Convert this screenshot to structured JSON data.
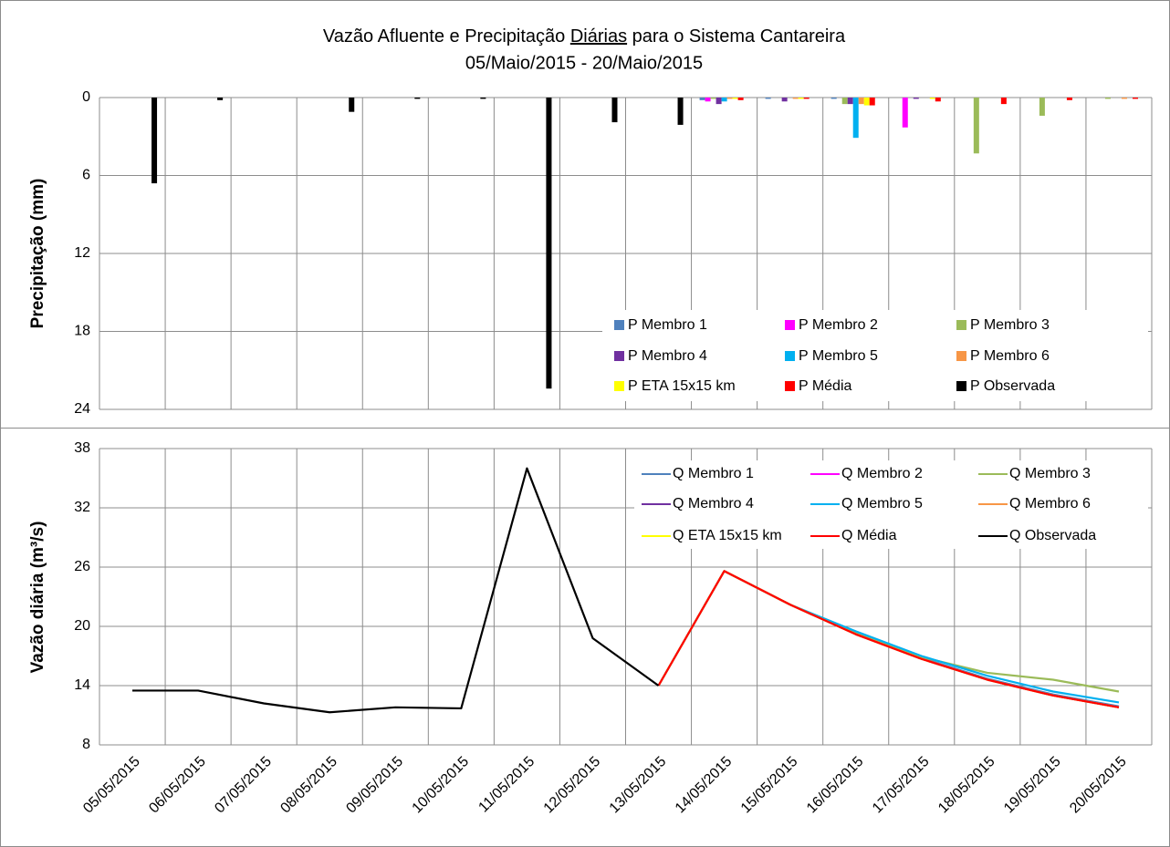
{
  "chart_data": [
    {
      "type": "bar",
      "title": [
        "Vazão Afluente e Precipitação ",
        "Diárias",
        " para o Sistema Cantareira"
      ],
      "subtitle": "05/Maio/2015 - 20/Maio/2015",
      "y_label": "Precipitação (mm)",
      "categories": [
        "05/05/2015",
        "06/05/2015",
        "07/05/2015",
        "08/05/2015",
        "09/05/2015",
        "10/05/2015",
        "11/05/2015",
        "12/05/2015",
        "13/05/2015",
        "14/05/2015",
        "15/05/2015",
        "16/05/2015",
        "17/05/2015",
        "18/05/2015",
        "19/05/2015",
        "20/05/2015"
      ],
      "ylim": [
        0,
        24
      ],
      "yticks": [
        0,
        6,
        12,
        18,
        24
      ],
      "y_reversed": true,
      "grid": true,
      "legend": "lower right",
      "series": [
        {
          "name": "P Membro 1",
          "color": "#4f81bd",
          "values": [
            null,
            null,
            null,
            null,
            null,
            null,
            null,
            null,
            null,
            0.2,
            0.1,
            0.1,
            0.0,
            0.0,
            0.0,
            0.0
          ]
        },
        {
          "name": "P Membro 2",
          "color": "#ff00ff",
          "values": [
            null,
            null,
            null,
            null,
            null,
            null,
            null,
            null,
            null,
            0.3,
            0.0,
            0.0,
            2.3,
            0.0,
            0.0,
            0.0
          ]
        },
        {
          "name": "P Membro 3",
          "color": "#9bbb59",
          "values": [
            null,
            null,
            null,
            null,
            null,
            null,
            null,
            null,
            null,
            0.1,
            0.0,
            0.5,
            0.0,
            4.3,
            1.4,
            0.1
          ]
        },
        {
          "name": "P Membro 4",
          "color": "#7030a0",
          "values": [
            null,
            null,
            null,
            null,
            null,
            null,
            null,
            null,
            null,
            0.5,
            0.3,
            0.5,
            0.1,
            0.0,
            0.0,
            0.0
          ]
        },
        {
          "name": "P Membro 5",
          "color": "#00b0f0",
          "values": [
            null,
            null,
            null,
            null,
            null,
            null,
            null,
            null,
            null,
            0.3,
            0.0,
            3.1,
            0.0,
            0.0,
            0.0,
            0.0
          ]
        },
        {
          "name": "P Membro 6",
          "color": "#f79646",
          "values": [
            null,
            null,
            null,
            null,
            null,
            null,
            null,
            null,
            null,
            0.1,
            0.1,
            0.5,
            0.0,
            0.0,
            0.0,
            0.1
          ]
        },
        {
          "name": "P ETA 15x15 km",
          "color": "#ffff00",
          "values": [
            null,
            null,
            null,
            null,
            null,
            null,
            null,
            null,
            null,
            0.1,
            0.1,
            0.6,
            0.1,
            0.0,
            0.0,
            0.0
          ]
        },
        {
          "name": "P Média",
          "color": "#ff0000",
          "values": [
            null,
            null,
            null,
            null,
            null,
            null,
            null,
            null,
            null,
            0.2,
            0.1,
            0.6,
            0.3,
            0.5,
            0.2,
            0.1
          ]
        },
        {
          "name": "P Observada",
          "color": "#000000",
          "values": [
            6.6,
            0.2,
            0.0,
            1.1,
            0.1,
            0.1,
            22.4,
            1.9,
            2.1,
            null,
            null,
            null,
            null,
            null,
            null,
            null
          ]
        }
      ]
    },
    {
      "type": "line",
      "y_label": "Vazão diária (m³/s)",
      "categories": [
        "05/05/2015",
        "06/05/2015",
        "07/05/2015",
        "08/05/2015",
        "09/05/2015",
        "10/05/2015",
        "11/05/2015",
        "12/05/2015",
        "13/05/2015",
        "14/05/2015",
        "15/05/2015",
        "16/05/2015",
        "17/05/2015",
        "18/05/2015",
        "19/05/2015",
        "20/05/2015"
      ],
      "ylim": [
        8,
        38
      ],
      "yticks": [
        8,
        14,
        20,
        26,
        32,
        38
      ],
      "grid": true,
      "legend": "upper right",
      "series": [
        {
          "name": "Q Membro 1",
          "color": "#4f81bd",
          "values": [
            null,
            null,
            null,
            null,
            null,
            null,
            null,
            null,
            14.0,
            25.6,
            22.2,
            19.3,
            16.8,
            14.7,
            13.1,
            11.9
          ]
        },
        {
          "name": "Q Membro 2",
          "color": "#ff00ff",
          "values": [
            null,
            null,
            null,
            null,
            null,
            null,
            null,
            null,
            14.0,
            25.6,
            22.2,
            19.2,
            16.7,
            14.6,
            13.0,
            11.8
          ]
        },
        {
          "name": "Q Membro 3",
          "color": "#9bbb59",
          "values": [
            null,
            null,
            null,
            null,
            null,
            null,
            null,
            null,
            14.0,
            25.6,
            22.2,
            19.4,
            16.9,
            15.3,
            14.6,
            13.4
          ]
        },
        {
          "name": "Q Membro 4",
          "color": "#7030a0",
          "values": [
            null,
            null,
            null,
            null,
            null,
            null,
            null,
            null,
            14.0,
            25.6,
            22.2,
            19.2,
            16.7,
            14.6,
            13.0,
            11.8
          ]
        },
        {
          "name": "Q Membro 5",
          "color": "#00b0f0",
          "values": [
            null,
            null,
            null,
            null,
            null,
            null,
            null,
            null,
            14.0,
            25.6,
            22.2,
            19.5,
            17.0,
            15.0,
            13.4,
            12.3
          ]
        },
        {
          "name": "Q Membro 6",
          "color": "#f79646",
          "values": [
            null,
            null,
            null,
            null,
            null,
            null,
            null,
            null,
            14.0,
            25.6,
            22.2,
            19.2,
            16.7,
            14.6,
            13.0,
            11.8
          ]
        },
        {
          "name": "Q ETA 15x15 km",
          "color": "#ffff00",
          "values": [
            null,
            null,
            null,
            null,
            null,
            null,
            null,
            null,
            14.0,
            25.6,
            22.2,
            19.2,
            16.7,
            14.6,
            13.0,
            11.8
          ]
        },
        {
          "name": "Q Média",
          "color": "#ff0000",
          "values": [
            null,
            null,
            null,
            null,
            null,
            null,
            null,
            null,
            14.0,
            25.6,
            22.2,
            19.2,
            16.7,
            14.6,
            13.0,
            11.8
          ]
        },
        {
          "name": "Q Observada",
          "color": "#000000",
          "values": [
            13.5,
            13.5,
            12.2,
            11.3,
            11.8,
            11.7,
            36.0,
            18.8,
            14.0,
            null,
            null,
            null,
            null,
            null,
            null,
            null
          ]
        }
      ]
    }
  ]
}
